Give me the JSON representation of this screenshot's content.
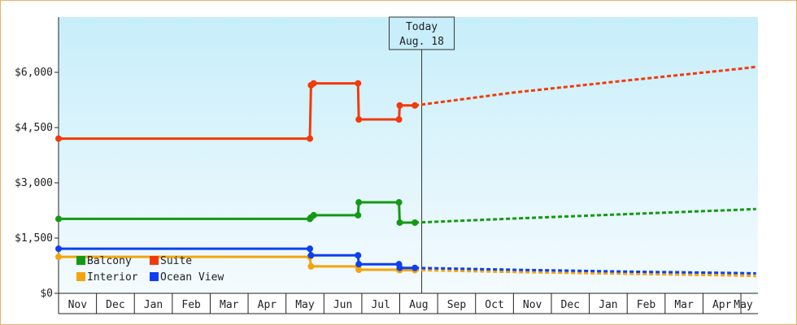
{
  "chart_data": {
    "type": "line",
    "title": "",
    "xlabel": "",
    "ylabel": "",
    "ylim": [
      0,
      7500
    ],
    "y_ticks": [
      0,
      1500,
      3000,
      4500,
      6000
    ],
    "y_tick_labels": [
      "$0",
      "$1,500",
      "$3,000",
      "$4,500",
      "$6,000"
    ],
    "x_tick_labels": [
      "Nov",
      "Dec",
      "Jan",
      "Feb",
      "Mar",
      "Apr",
      "May",
      "Jun",
      "Jul",
      "Aug",
      "Sep",
      "Oct",
      "Nov",
      "Dec",
      "Jan",
      "Feb",
      "Mar",
      "Apr",
      "May"
    ],
    "x_unit": "month index (0 = start of Nov)",
    "today": {
      "label": "Today",
      "date": "Aug. 18",
      "x": 9.58
    },
    "legend_position": "bottom-left",
    "grid": false,
    "colors": {
      "Balcony": "#129a12",
      "Suite": "#f23a0a",
      "Interior": "#f5a40c",
      "Ocean View": "#0d3ff0",
      "plot_bg_top": "#c7eefa",
      "plot_bg_bottom": "#f4fbfe",
      "frame": "#e8b36a"
    },
    "series": [
      {
        "name": "Suite",
        "points": [
          [
            0.0,
            4200
          ],
          [
            6.63,
            4200
          ],
          [
            6.66,
            5650
          ],
          [
            6.73,
            5700
          ],
          [
            7.9,
            5700
          ],
          [
            7.92,
            4720
          ],
          [
            8.98,
            4720
          ],
          [
            9.0,
            5100
          ],
          [
            9.4,
            5100
          ]
        ],
        "forecast": [
          [
            9.4,
            5100
          ],
          [
            12.0,
            5450
          ],
          [
            15.0,
            5780
          ],
          [
            18.0,
            6100
          ],
          [
            18.4,
            6150
          ]
        ]
      },
      {
        "name": "Balcony",
        "points": [
          [
            0.0,
            2020
          ],
          [
            6.63,
            2020
          ],
          [
            6.66,
            2060
          ],
          [
            6.73,
            2120
          ],
          [
            7.9,
            2120
          ],
          [
            7.92,
            2470
          ],
          [
            8.98,
            2470
          ],
          [
            9.0,
            1920
          ],
          [
            9.4,
            1920
          ]
        ],
        "forecast": [
          [
            9.4,
            1920
          ],
          [
            12.0,
            2030
          ],
          [
            15.0,
            2150
          ],
          [
            18.0,
            2270
          ],
          [
            18.4,
            2290
          ]
        ]
      },
      {
        "name": "Interior",
        "points": [
          [
            0.0,
            990
          ],
          [
            6.63,
            990
          ],
          [
            6.66,
            730
          ],
          [
            6.73,
            730
          ],
          [
            7.9,
            730
          ],
          [
            7.92,
            640
          ],
          [
            8.98,
            640
          ],
          [
            9.0,
            630
          ],
          [
            9.4,
            630
          ]
        ],
        "forecast": [
          [
            9.4,
            630
          ],
          [
            12.0,
            580
          ],
          [
            15.0,
            530
          ],
          [
            18.0,
            480
          ],
          [
            18.4,
            470
          ]
        ]
      },
      {
        "name": "Ocean View",
        "points": [
          [
            0.0,
            1210
          ],
          [
            6.63,
            1210
          ],
          [
            6.66,
            1030
          ],
          [
            6.73,
            1030
          ],
          [
            7.9,
            1030
          ],
          [
            7.92,
            790
          ],
          [
            8.98,
            790
          ],
          [
            9.0,
            690
          ],
          [
            9.4,
            690
          ]
        ],
        "forecast": [
          [
            9.4,
            690
          ],
          [
            12.0,
            640
          ],
          [
            15.0,
            590
          ],
          [
            18.0,
            550
          ],
          [
            18.4,
            540
          ]
        ]
      }
    ]
  }
}
